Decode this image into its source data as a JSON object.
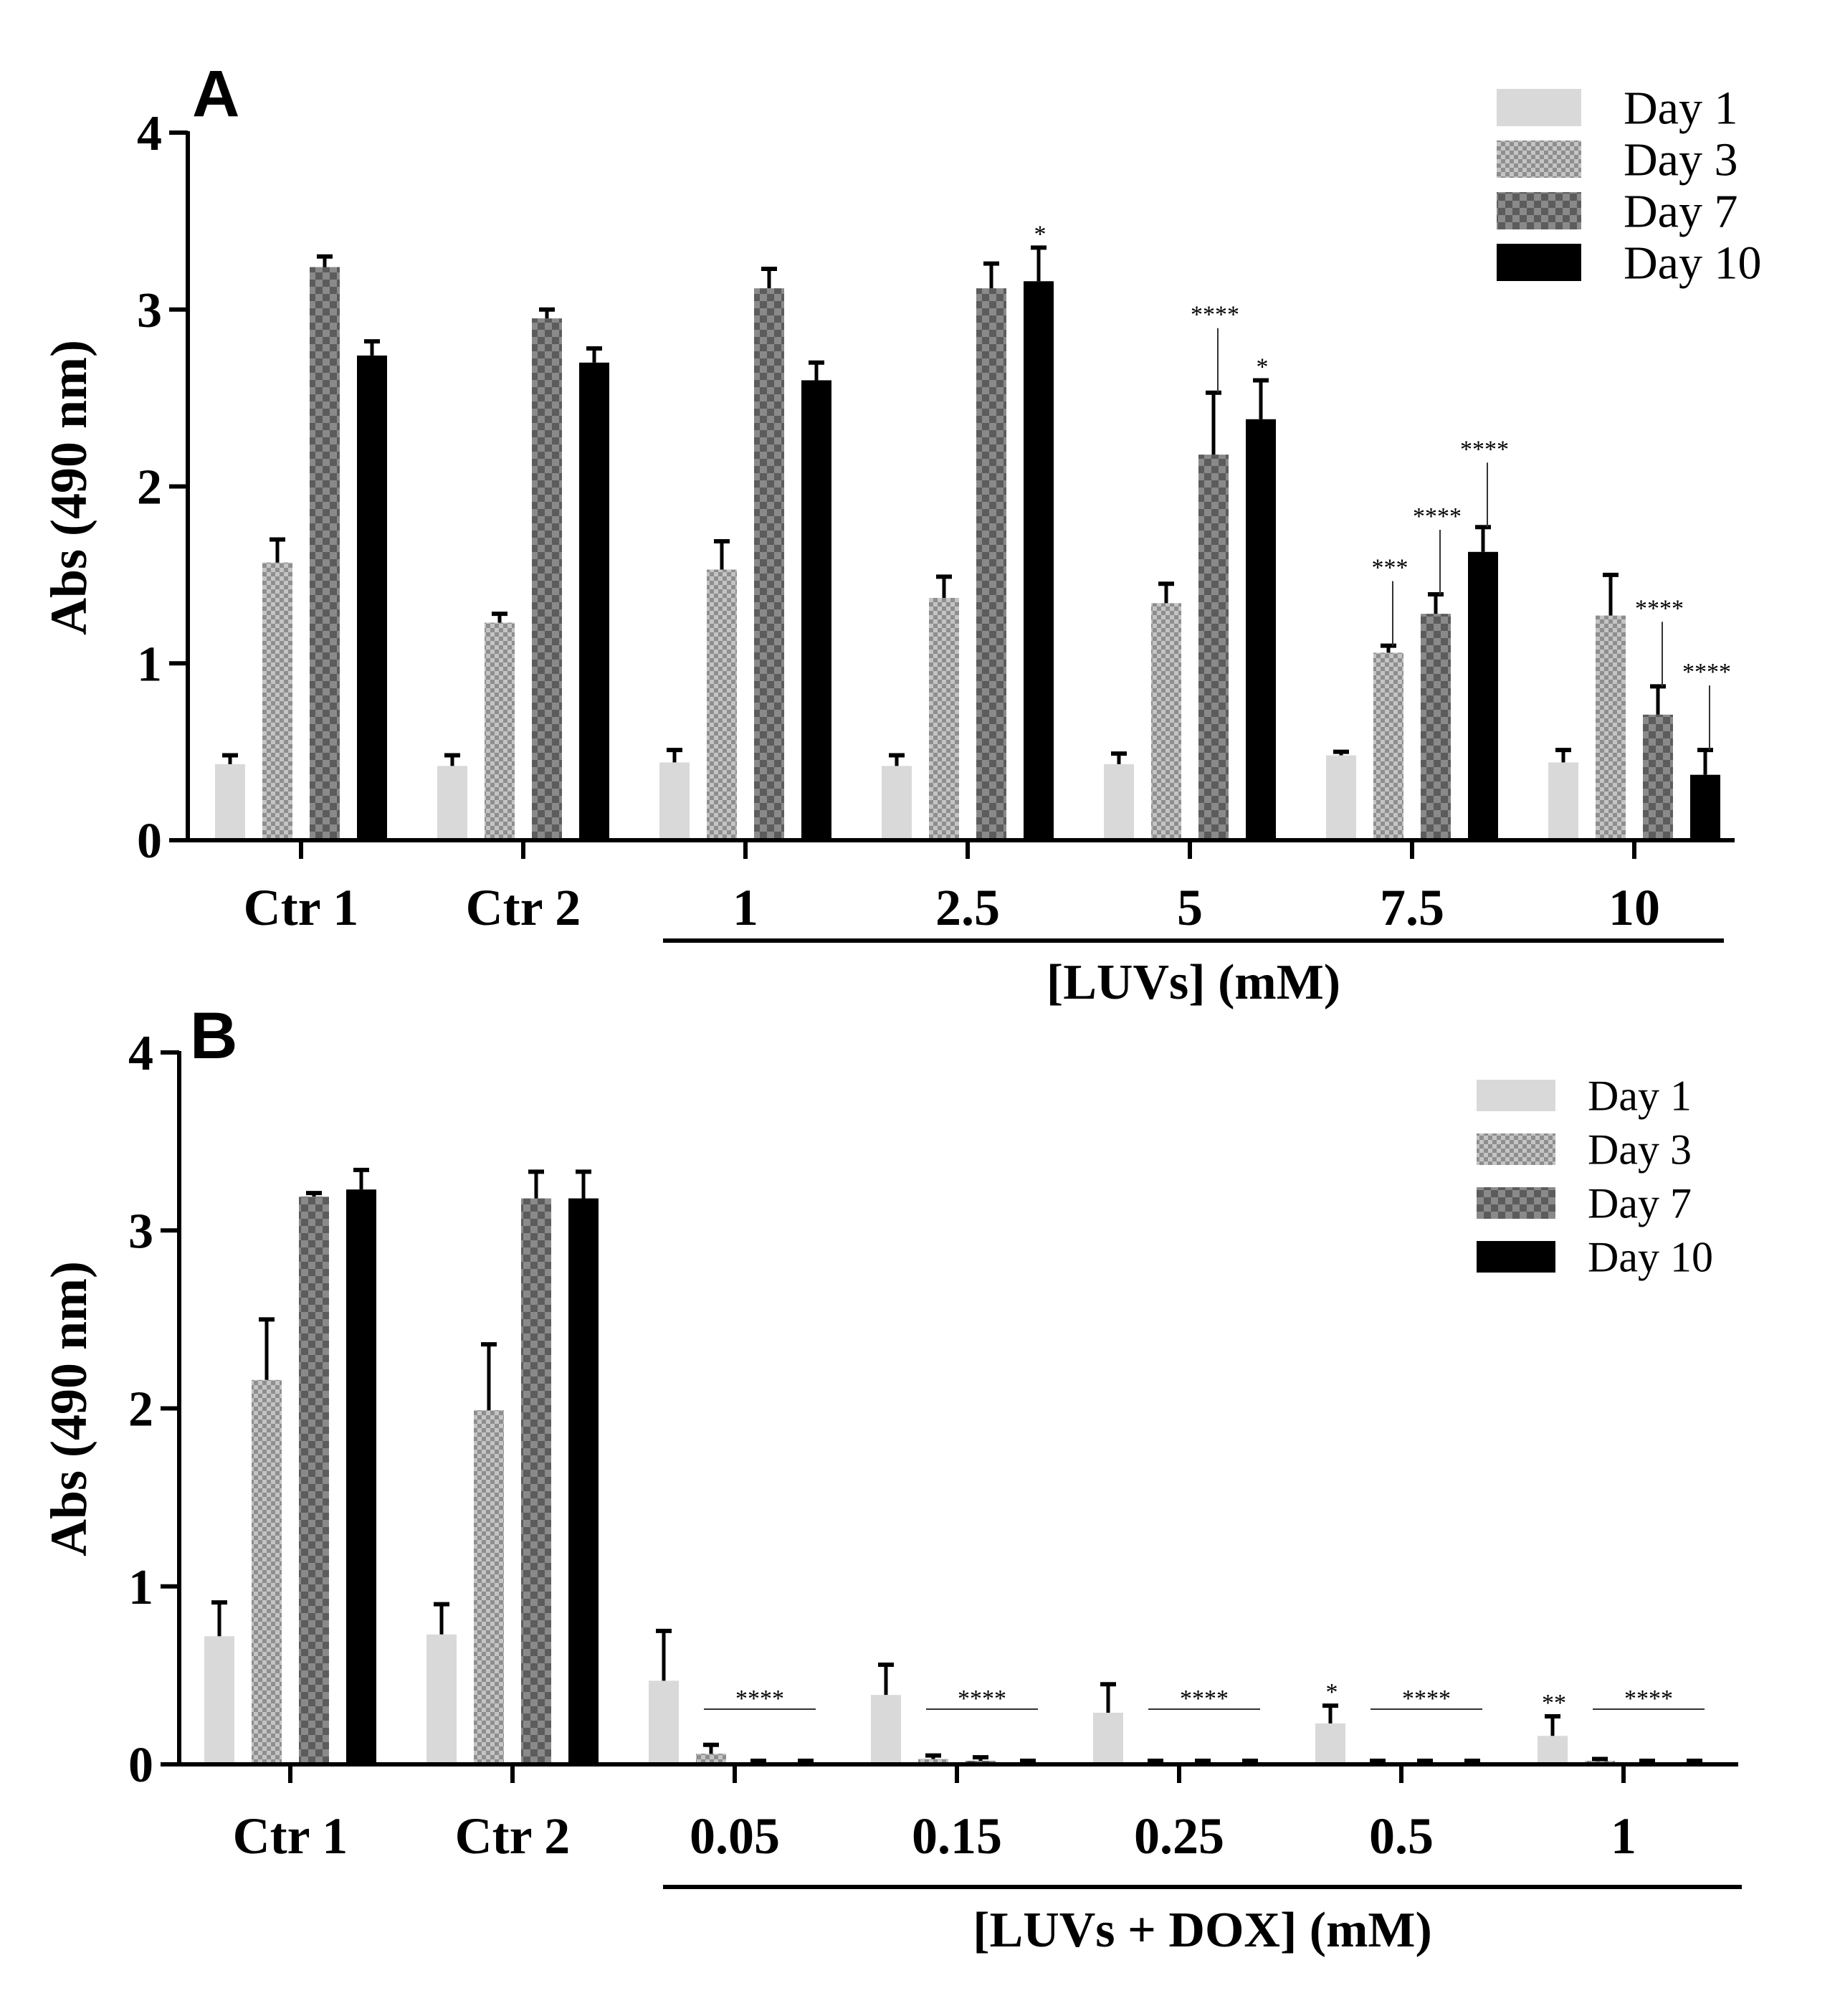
{
  "figure": {
    "panels": [
      "A",
      "B"
    ]
  },
  "colors": {
    "day1": "#d9d9d9",
    "day3": "#a6a6a6",
    "day7": "#767676",
    "day10": "#000000"
  },
  "chart_data": [
    {
      "panel": "A",
      "type": "bar",
      "title": "",
      "ylabel": "Abs (490 nm)",
      "xlabel": "[LUVs] (mM)",
      "ylim": [
        0,
        4
      ],
      "yticks": [
        "0",
        "1",
        "2",
        "3",
        "4"
      ],
      "categories": [
        "Ctr 1",
        "Ctr 2",
        "1",
        "2.5",
        "5",
        "7.5",
        "10"
      ],
      "legend_position": "top-right",
      "series": [
        {
          "name": "Day 1",
          "values": [
            0.43,
            0.42,
            0.44,
            0.42,
            0.43,
            0.48,
            0.44
          ],
          "errors": [
            0.05,
            0.06,
            0.07,
            0.06,
            0.06,
            0.02,
            0.07
          ]
        },
        {
          "name": "Day 3",
          "values": [
            1.57,
            1.23,
            1.53,
            1.37,
            1.34,
            1.06,
            1.27
          ],
          "errors": [
            0.13,
            0.05,
            0.16,
            0.12,
            0.11,
            0.04,
            0.23
          ]
        },
        {
          "name": "Day 7",
          "values": [
            3.24,
            2.95,
            3.12,
            3.12,
            2.18,
            1.28,
            0.71
          ],
          "errors": [
            0.06,
            0.05,
            0.11,
            0.14,
            0.35,
            0.11,
            0.16
          ]
        },
        {
          "name": "Day 10",
          "values": [
            2.74,
            2.7,
            2.6,
            3.16,
            2.38,
            1.63,
            0.37
          ],
          "errors": [
            0.08,
            0.08,
            0.1,
            0.19,
            0.22,
            0.14,
            0.14
          ]
        }
      ],
      "annotations": [
        {
          "category": "2.5",
          "series": "Day 10",
          "text": "*"
        },
        {
          "category": "5",
          "series": "Day 7",
          "text": "****"
        },
        {
          "category": "5",
          "series": "Day 10",
          "text": "*"
        },
        {
          "category": "7.5",
          "series": "Day 3",
          "text": "***"
        },
        {
          "category": "7.5",
          "series": "Day 7",
          "text": "****"
        },
        {
          "category": "7.5",
          "series": "Day 10",
          "text": "****"
        },
        {
          "category": "10",
          "series": "Day 7",
          "text": "****"
        },
        {
          "category": "10",
          "series": "Day 10",
          "text": "****"
        }
      ]
    },
    {
      "panel": "B",
      "type": "bar",
      "title": "",
      "ylabel": "Abs (490 nm)",
      "xlabel": "[LUVs + DOX] (mM)",
      "ylim": [
        0,
        4
      ],
      "yticks": [
        "0",
        "1",
        "2",
        "3",
        "4"
      ],
      "categories": [
        "Ctr 1",
        "Ctr 2",
        "0.05",
        "0.15",
        "0.25",
        "0.5",
        "1"
      ],
      "legend_position": "top-right",
      "series": [
        {
          "name": "Day 1",
          "values": [
            0.72,
            0.73,
            0.47,
            0.39,
            0.29,
            0.23,
            0.16
          ],
          "errors": [
            0.19,
            0.17,
            0.28,
            0.17,
            0.16,
            0.1,
            0.11
          ]
        },
        {
          "name": "Day 3",
          "values": [
            2.16,
            1.99,
            0.06,
            0.03,
            0.01,
            0.01,
            0.02
          ],
          "errors": [
            0.34,
            0.37,
            0.05,
            0.02,
            0.01,
            0.01,
            0.01
          ]
        },
        {
          "name": "Day 7",
          "values": [
            3.19,
            3.18,
            0.01,
            0.02,
            0.01,
            0.01,
            0.01
          ],
          "errors": [
            0.02,
            0.15,
            0.01,
            0.02,
            0.01,
            0.01,
            0.01
          ]
        },
        {
          "name": "Day 10",
          "values": [
            3.23,
            3.18,
            0.01,
            0.01,
            0.01,
            0.01,
            0.01
          ],
          "errors": [
            0.11,
            0.15,
            0.01,
            0.01,
            0.01,
            0.01,
            0.01
          ]
        }
      ],
      "annotations": [
        {
          "category": "0.05",
          "span": [
            "Day 3",
            "Day 10"
          ],
          "text": "****"
        },
        {
          "category": "0.15",
          "span": [
            "Day 3",
            "Day 10"
          ],
          "text": "****"
        },
        {
          "category": "0.25",
          "span": [
            "Day 3",
            "Day 10"
          ],
          "text": "****"
        },
        {
          "category": "0.5",
          "series": "Day 1",
          "text": "*"
        },
        {
          "category": "0.5",
          "span": [
            "Day 3",
            "Day 10"
          ],
          "text": "****"
        },
        {
          "category": "1",
          "series": "Day 1",
          "text": "**"
        },
        {
          "category": "1",
          "span": [
            "Day 3",
            "Day 10"
          ],
          "text": "****"
        }
      ]
    }
  ]
}
